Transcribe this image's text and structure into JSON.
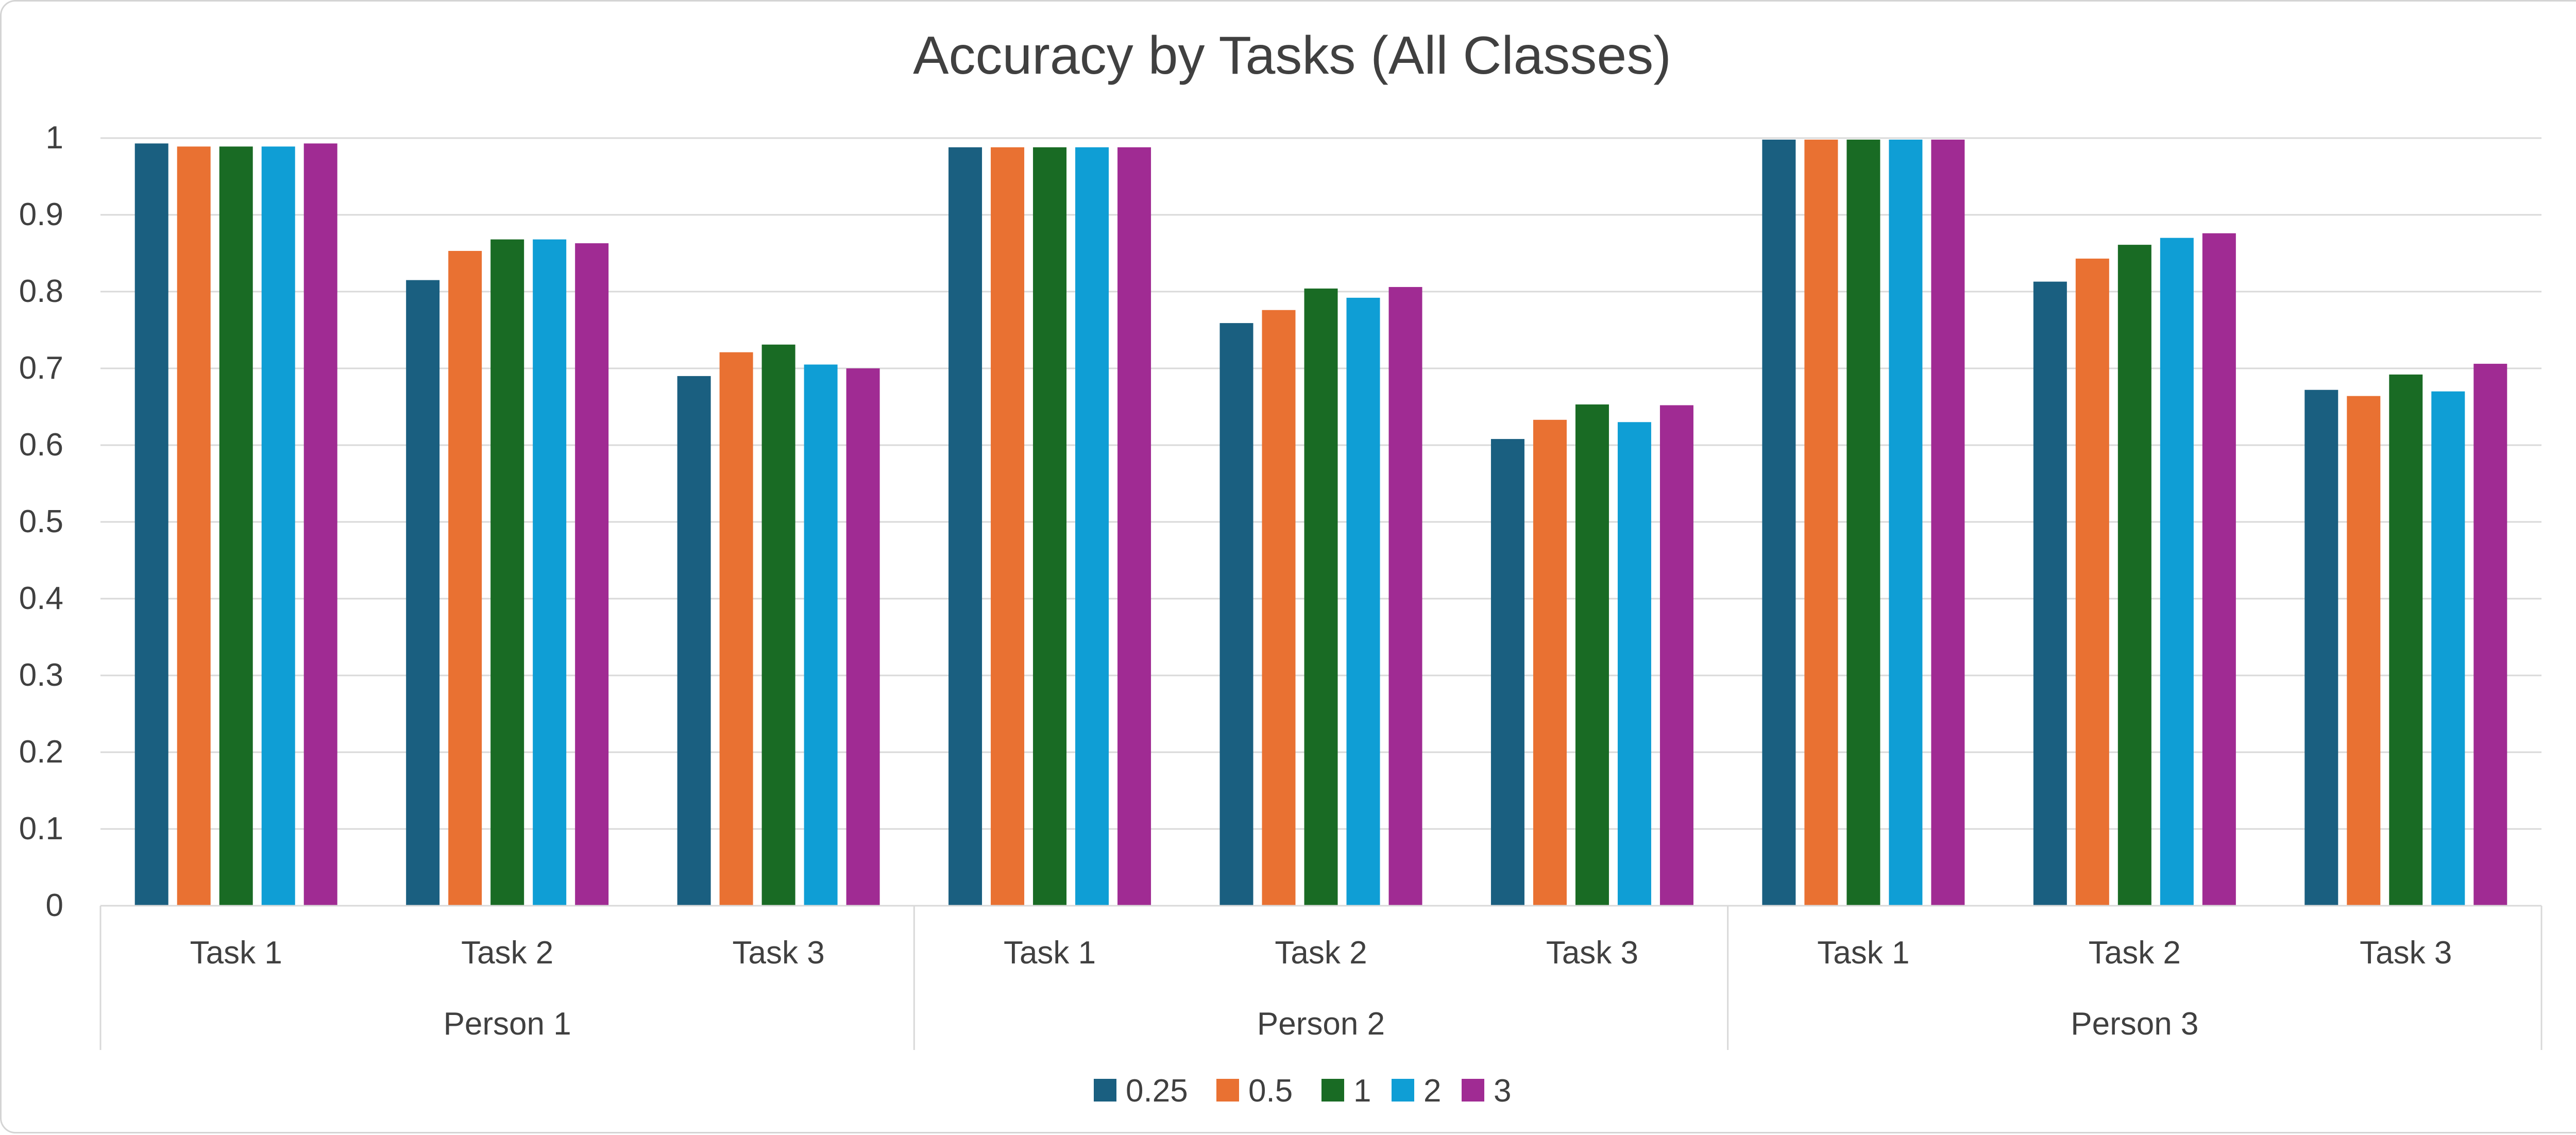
{
  "chart_data": {
    "type": "bar",
    "title": "Accuracy by Tasks (All Classes)",
    "xlabel": "",
    "ylabel": "",
    "ylim": [
      0,
      1
    ],
    "yticks": [
      "0",
      "0.1",
      "0.2",
      "0.3",
      "0.4",
      "0.5",
      "0.6",
      "0.7",
      "0.8",
      "0.9",
      "1"
    ],
    "grid": true,
    "legend_position": "bottom",
    "groups": [
      {
        "label": "Person 1",
        "categories": [
          "Task 1",
          "Task 2",
          "Task 3"
        ]
      },
      {
        "label": "Person 2",
        "categories": [
          "Task 1",
          "Task 2",
          "Task 3"
        ]
      },
      {
        "label": "Person 3",
        "categories": [
          "Task 1",
          "Task 2",
          "Task 3"
        ]
      }
    ],
    "series": [
      {
        "name": "0.25",
        "color": "#1a5f80",
        "values": [
          0.993,
          0.815,
          0.69,
          0.988,
          0.759,
          0.608,
          0.998,
          0.813,
          0.672
        ]
      },
      {
        "name": "0.5",
        "color": "#e97132",
        "values": [
          0.989,
          0.853,
          0.721,
          0.988,
          0.776,
          0.633,
          0.998,
          0.843,
          0.664
        ]
      },
      {
        "name": "1",
        "color": "#196b24",
        "values": [
          0.989,
          0.868,
          0.731,
          0.988,
          0.804,
          0.653,
          0.998,
          0.861,
          0.692
        ]
      },
      {
        "name": "2",
        "color": "#0f9ed5",
        "values": [
          0.989,
          0.868,
          0.705,
          0.988,
          0.792,
          0.63,
          0.998,
          0.87,
          0.67
        ]
      },
      {
        "name": "3",
        "color": "#a02b93",
        "values": [
          0.993,
          0.863,
          0.7,
          0.988,
          0.806,
          0.652,
          0.998,
          0.876,
          0.706
        ]
      }
    ]
  }
}
